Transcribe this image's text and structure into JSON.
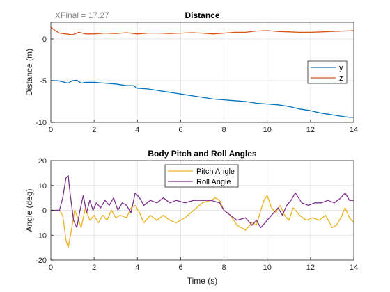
{
  "annotation": "XFinal = 17.27",
  "chart_data": [
    {
      "type": "line",
      "title": "Distance",
      "xlabel": "",
      "ylabel": "Distance (m)",
      "xlim": [
        0,
        14
      ],
      "ylim": [
        -10,
        2
      ],
      "xticks": [
        0,
        2,
        4,
        6,
        8,
        10,
        12,
        14
      ],
      "yticks": [
        -10,
        -5,
        0
      ],
      "grid": true,
      "legend": "right",
      "series": [
        {
          "name": "y",
          "color": "#0072BD",
          "x": [
            0,
            0.3,
            0.5,
            0.8,
            1.0,
            1.2,
            1.4,
            1.6,
            2.0,
            2.5,
            3.0,
            3.5,
            3.8,
            4.0,
            4.5,
            5.0,
            5.5,
            6.0,
            6.5,
            7.0,
            7.5,
            8.0,
            8.5,
            9.0,
            9.5,
            10.0,
            10.5,
            11.0,
            11.5,
            12.0,
            12.5,
            13.0,
            13.5,
            13.8,
            14.0
          ],
          "y": [
            -5.0,
            -5.0,
            -5.1,
            -5.3,
            -5.0,
            -4.95,
            -5.3,
            -5.2,
            -5.2,
            -5.3,
            -5.4,
            -5.6,
            -5.6,
            -5.9,
            -6.0,
            -6.2,
            -6.4,
            -6.6,
            -6.8,
            -7.0,
            -7.2,
            -7.3,
            -7.4,
            -7.5,
            -7.7,
            -7.8,
            -7.9,
            -8.1,
            -8.4,
            -8.6,
            -8.9,
            -9.1,
            -9.3,
            -9.4,
            -9.4
          ]
        },
        {
          "name": "z",
          "color": "#D95319",
          "x": [
            0,
            0.2,
            0.4,
            0.7,
            1.0,
            1.3,
            1.6,
            2.0,
            2.5,
            3.0,
            3.5,
            4.0,
            4.5,
            5.0,
            5.5,
            6.0,
            6.5,
            7.0,
            7.5,
            8.0,
            8.5,
            9.0,
            9.5,
            10.0,
            10.5,
            11.0,
            11.5,
            12.0,
            12.5,
            13.0,
            13.5,
            14.0
          ],
          "y": [
            1.4,
            1.0,
            0.7,
            0.6,
            0.5,
            0.8,
            0.6,
            0.6,
            0.7,
            0.65,
            0.75,
            0.6,
            0.7,
            0.7,
            0.65,
            0.7,
            0.75,
            0.7,
            0.6,
            0.7,
            0.8,
            0.8,
            0.95,
            1.0,
            0.9,
            0.85,
            0.8,
            0.8,
            0.85,
            0.9,
            0.95,
            1.0
          ]
        }
      ]
    },
    {
      "type": "line",
      "title": "Body Pitch and Roll Angles",
      "xlabel": "Time (s)",
      "ylabel": "Angle (deg)",
      "xlim": [
        0,
        14
      ],
      "ylim": [
        -20,
        20
      ],
      "xticks": [
        0,
        2,
        4,
        6,
        8,
        10,
        12,
        14
      ],
      "yticks": [
        -20,
        -10,
        0,
        10,
        20
      ],
      "grid": true,
      "legend": "top",
      "series": [
        {
          "name": "Pitch Angle",
          "color": "#EDB120",
          "x": [
            0,
            0.4,
            0.55,
            0.7,
            0.8,
            0.95,
            1.1,
            1.25,
            1.4,
            1.6,
            1.8,
            2.0,
            2.2,
            2.4,
            2.6,
            2.8,
            3.0,
            3.2,
            3.5,
            3.7,
            3.9,
            4.1,
            4.3,
            4.6,
            4.9,
            5.2,
            5.5,
            5.8,
            6.2,
            6.6,
            7.0,
            7.4,
            7.6,
            7.8,
            8.0,
            8.3,
            8.6,
            9.0,
            9.3,
            9.5,
            9.7,
            9.85,
            10.0,
            10.2,
            10.4,
            10.6,
            10.8,
            11.0,
            11.2,
            11.5,
            11.8,
            12.1,
            12.4,
            12.7,
            13.0,
            13.2,
            13.4,
            13.6,
            13.8,
            14.0
          ],
          "y": [
            0,
            0,
            -2,
            -12,
            -15,
            -8,
            0,
            -3,
            -7,
            1,
            -4,
            -2,
            -5,
            -2,
            -4,
            0,
            -3,
            -2,
            -3,
            1,
            2,
            -1,
            -5,
            -2,
            -4,
            -2,
            -4,
            -5,
            -3,
            0,
            3,
            4,
            5,
            4,
            0,
            -2,
            -6,
            -8,
            -5,
            -6,
            0,
            4,
            6,
            1,
            -1,
            2,
            -2,
            -4,
            1,
            -2,
            -4,
            -3,
            -4,
            -2,
            -7,
            -6,
            -3,
            1,
            -3,
            -5
          ]
        },
        {
          "name": "Roll Angle",
          "color": "#7E2F8E",
          "x": [
            0,
            0.4,
            0.55,
            0.7,
            0.8,
            0.9,
            1.05,
            1.2,
            1.35,
            1.5,
            1.65,
            1.8,
            1.95,
            2.1,
            2.3,
            2.5,
            2.7,
            2.9,
            3.1,
            3.3,
            3.5,
            3.7,
            3.9,
            4.1,
            4.3,
            4.6,
            4.9,
            5.2,
            5.5,
            5.8,
            6.2,
            6.6,
            7.0,
            7.4,
            7.8,
            8.0,
            8.3,
            8.6,
            9.0,
            9.3,
            9.5,
            9.7,
            9.9,
            10.1,
            10.3,
            10.5,
            10.7,
            10.9,
            11.1,
            11.3,
            11.6,
            11.9,
            12.2,
            12.5,
            12.8,
            13.1,
            13.4,
            13.6,
            13.8,
            14.0
          ],
          "y": [
            0,
            0,
            5,
            13,
            14,
            6,
            -4,
            -7,
            0,
            6,
            -1,
            4,
            0,
            3,
            1,
            4,
            2,
            5,
            0,
            3,
            2,
            -1,
            7,
            5,
            2,
            4,
            3,
            5,
            3,
            4,
            3,
            4,
            4,
            4,
            3,
            0,
            -2,
            -4,
            -3,
            -6,
            -4,
            -7,
            -5,
            -3,
            -1,
            1,
            -2,
            2,
            4,
            7,
            3,
            2,
            3,
            3,
            4,
            3,
            5,
            7,
            4,
            4
          ]
        }
      ]
    }
  ]
}
